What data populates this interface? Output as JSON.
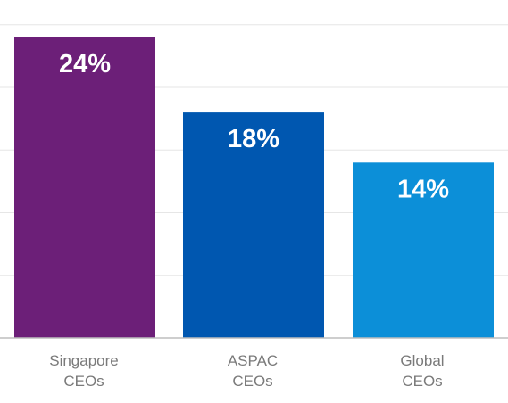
{
  "chart_data": {
    "type": "bar",
    "categories": [
      [
        "Singapore",
        "CEOs"
      ],
      [
        "ASPAC",
        "CEOs"
      ],
      [
        "Global",
        "CEOs"
      ]
    ],
    "values": [
      24,
      18,
      14
    ],
    "data_labels": [
      "24%",
      "18%",
      "14%"
    ],
    "unit": "%",
    "ylim": [
      0,
      26
    ],
    "grid": true,
    "colors": [
      "#6c1f78",
      "#0057b0",
      "#0c8fd8"
    ]
  }
}
